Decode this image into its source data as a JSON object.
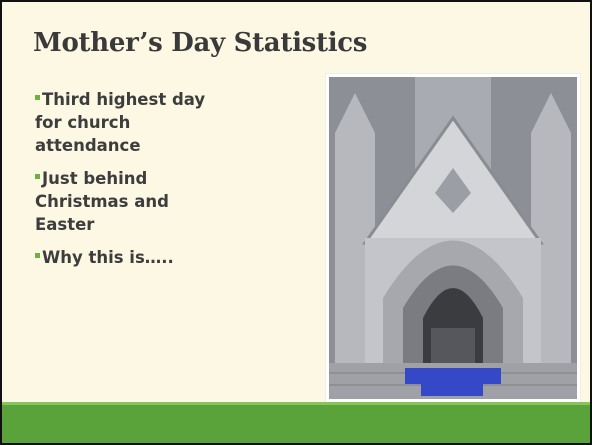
{
  "slide": {
    "title": "Mother’s Day Statistics",
    "bullets": [
      "Third highest day for church attendance",
      "Just behind Christmas and Easter",
      "Why this is….."
    ]
  }
}
